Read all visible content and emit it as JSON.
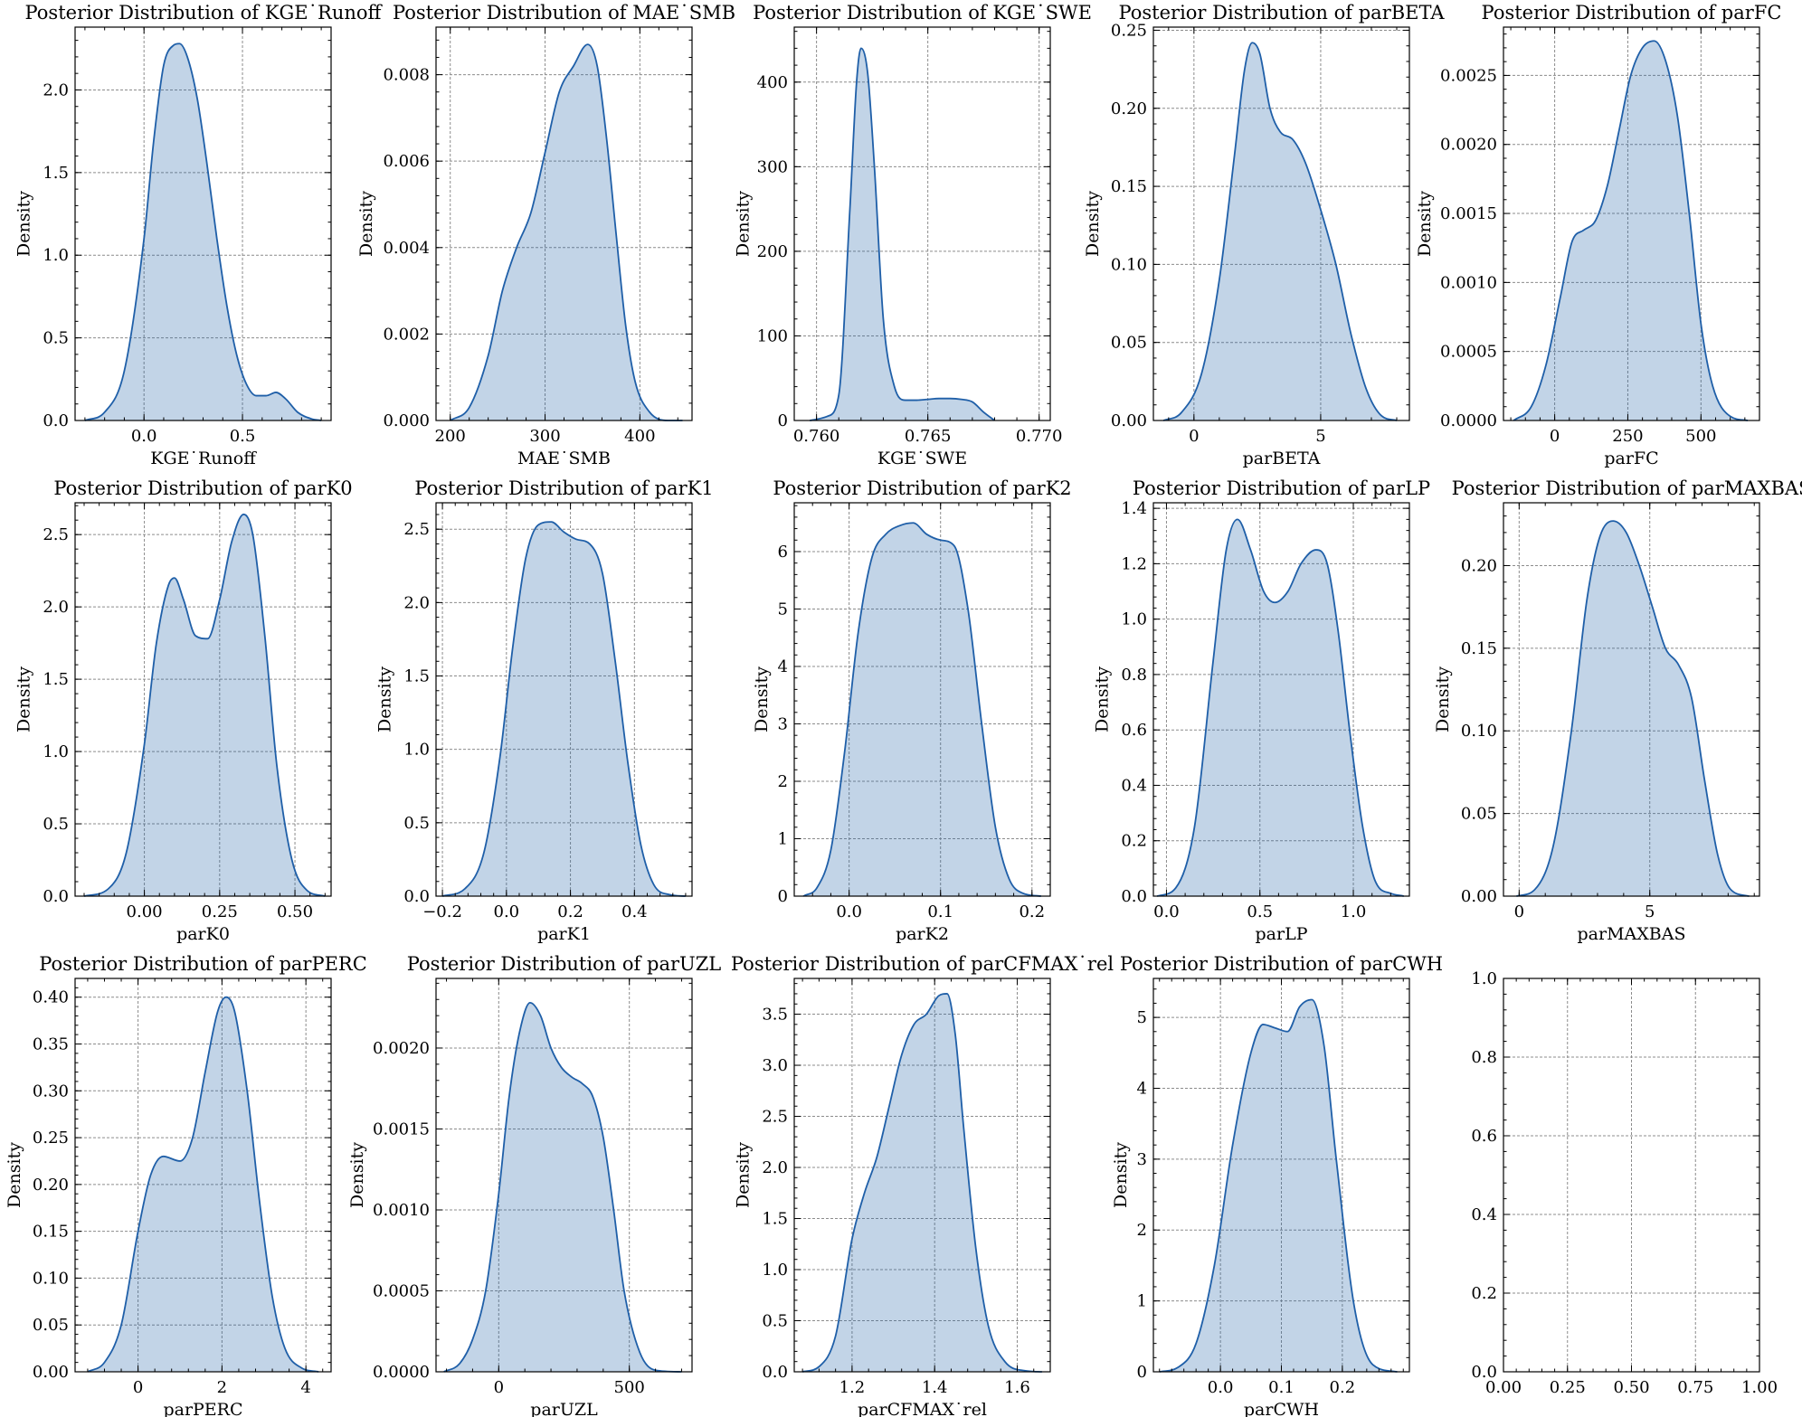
{
  "chart_data": [
    {
      "type": "area",
      "title": "Posterior Distribution of KGE˙Runoff",
      "xlabel": "KGE˙Runoff",
      "ylabel": "Density",
      "xlim": [
        -0.35,
        0.95
      ],
      "ylim": [
        0,
        2.38
      ],
      "xticks": [
        0.0,
        0.5
      ],
      "xtick_labels": [
        "0.0",
        "0.5"
      ],
      "yticks": [
        0.0,
        0.5,
        1.0,
        1.5,
        2.0
      ],
      "ytick_labels": [
        "0.0",
        "0.5",
        "1.0",
        "1.5",
        "2.0"
      ],
      "grid": true,
      "x": [
        -0.3,
        -0.2,
        -0.1,
        0.0,
        0.05,
        0.1,
        0.15,
        0.18,
        0.22,
        0.27,
        0.32,
        0.37,
        0.42,
        0.47,
        0.52,
        0.57,
        0.62,
        0.67,
        0.72,
        0.78,
        0.85,
        0.9
      ],
      "y": [
        0.0,
        0.05,
        0.3,
        1.1,
        1.7,
        2.15,
        2.27,
        2.28,
        2.2,
        1.95,
        1.55,
        1.1,
        0.7,
        0.4,
        0.22,
        0.15,
        0.15,
        0.17,
        0.13,
        0.05,
        0.01,
        0.0
      ]
    },
    {
      "type": "area",
      "title": "Posterior Distribution of MAE˙SMB",
      "xlabel": "MAE˙SMB",
      "ylabel": "Density",
      "xlim": [
        185,
        455
      ],
      "ylim": [
        0,
        0.0091
      ],
      "xticks": [
        200,
        300,
        400
      ],
      "xtick_labels": [
        "200",
        "300",
        "400"
      ],
      "yticks": [
        0.0,
        0.002,
        0.004,
        0.006,
        0.008
      ],
      "ytick_labels": [
        "0.000",
        "0.002",
        "0.004",
        "0.006",
        "0.008"
      ],
      "grid": true,
      "x": [
        200,
        220,
        240,
        255,
        270,
        285,
        300,
        315,
        330,
        345,
        355,
        365,
        375,
        385,
        395,
        410,
        430,
        445
      ],
      "y": [
        0.0,
        0.0003,
        0.0015,
        0.003,
        0.004,
        0.0048,
        0.0062,
        0.0076,
        0.0082,
        0.0087,
        0.0082,
        0.0065,
        0.0043,
        0.0022,
        0.0009,
        0.0002,
        0.0,
        0.0
      ]
    },
    {
      "type": "area",
      "title": "Posterior Distribution of KGE˙SWE",
      "xlabel": "KGE˙SWE",
      "ylabel": "Density",
      "xlim": [
        0.759,
        0.7705
      ],
      "ylim": [
        0,
        465
      ],
      "xticks": [
        0.76,
        0.765,
        0.77
      ],
      "xtick_labels": [
        "0.760",
        "0.765",
        "0.770"
      ],
      "yticks": [
        0,
        100,
        200,
        300,
        400
      ],
      "ytick_labels": [
        "0",
        "100",
        "200",
        "300",
        "400"
      ],
      "grid": true,
      "x": [
        0.7597,
        0.7605,
        0.761,
        0.7615,
        0.7618,
        0.762,
        0.7623,
        0.7626,
        0.763,
        0.7635,
        0.764,
        0.7645,
        0.765,
        0.7655,
        0.766,
        0.7665,
        0.767,
        0.7675,
        0.768
      ],
      "y": [
        0.0,
        5,
        30,
        250,
        400,
        440,
        410,
        300,
        120,
        40,
        24,
        24,
        25,
        26,
        26,
        25,
        22,
        10,
        0
      ]
    },
    {
      "type": "area",
      "title": "Posterior Distribution of parBETA",
      "xlabel": "parBETA",
      "ylabel": "Density",
      "xlim": [
        -1.6,
        8.5
      ],
      "ylim": [
        0,
        0.252
      ],
      "xticks": [
        0,
        5
      ],
      "xtick_labels": [
        "0",
        "5"
      ],
      "yticks": [
        0.0,
        0.05,
        0.1,
        0.15,
        0.2,
        0.25
      ],
      "ytick_labels": [
        "0.00",
        "0.05",
        "0.10",
        "0.15",
        "0.20",
        "0.25"
      ],
      "grid": true,
      "x": [
        -1.2,
        -0.5,
        0.3,
        1.0,
        1.6,
        2.0,
        2.3,
        2.6,
        3.0,
        3.4,
        3.9,
        4.4,
        5.0,
        5.6,
        6.2,
        6.8,
        7.4,
        8.0
      ],
      "y": [
        0.0,
        0.005,
        0.03,
        0.09,
        0.17,
        0.225,
        0.242,
        0.235,
        0.2,
        0.185,
        0.18,
        0.165,
        0.135,
        0.1,
        0.055,
        0.02,
        0.003,
        0.0
      ]
    },
    {
      "type": "area",
      "title": "Posterior Distribution of parFC",
      "xlabel": "parFC",
      "ylabel": "Density",
      "xlim": [
        -175,
        700
      ],
      "ylim": [
        0,
        0.00285
      ],
      "xticks": [
        0,
        250,
        500
      ],
      "xtick_labels": [
        "0",
        "250",
        "500"
      ],
      "yticks": [
        0.0,
        0.0005,
        0.001,
        0.0015,
        0.002,
        0.0025
      ],
      "ytick_labels": [
        "0.0000",
        "0.0005",
        "0.0010",
        "0.0015",
        "0.0020",
        "0.0025"
      ],
      "grid": true,
      "x": [
        -140,
        -80,
        -30,
        20,
        60,
        100,
        140,
        180,
        220,
        260,
        300,
        340,
        380,
        420,
        460,
        500,
        540,
        600,
        660
      ],
      "y": [
        0.0,
        0.0001,
        0.0004,
        0.0009,
        0.0013,
        0.00138,
        0.00145,
        0.0017,
        0.0021,
        0.0025,
        0.0027,
        0.00275,
        0.0026,
        0.0022,
        0.0015,
        0.0007,
        0.00025,
        3e-05,
        0.0
      ]
    },
    {
      "type": "area",
      "title": "Posterior Distribution of parK0",
      "xlabel": "parK0",
      "ylabel": "Density",
      "xlim": [
        -0.23,
        0.62
      ],
      "ylim": [
        0,
        2.72
      ],
      "xticks": [
        0.0,
        0.25,
        0.5
      ],
      "xtick_labels": [
        "0.00",
        "0.25",
        "0.50"
      ],
      "yticks": [
        0.0,
        0.5,
        1.0,
        1.5,
        2.0,
        2.5
      ],
      "ytick_labels": [
        "0.0",
        "0.5",
        "1.0",
        "1.5",
        "2.0",
        "2.5"
      ],
      "grid": true,
      "x": [
        -0.2,
        -0.12,
        -0.06,
        0.0,
        0.04,
        0.08,
        0.1,
        0.13,
        0.17,
        0.21,
        0.25,
        0.29,
        0.33,
        0.36,
        0.4,
        0.44,
        0.49,
        0.54,
        0.6
      ],
      "y": [
        0.0,
        0.05,
        0.3,
        1.05,
        1.75,
        2.15,
        2.2,
        2.05,
        1.8,
        1.78,
        2.05,
        2.45,
        2.64,
        2.5,
        1.8,
        0.9,
        0.25,
        0.04,
        0.0
      ]
    },
    {
      "type": "area",
      "title": "Posterior Distribution of parK1",
      "xlabel": "parK1",
      "ylabel": "Density",
      "xlim": [
        -0.22,
        0.58
      ],
      "ylim": [
        0,
        2.68
      ],
      "xticks": [
        -0.2,
        0.0,
        0.2,
        0.4
      ],
      "xtick_labels": [
        "−0.2",
        "0.0",
        "0.2",
        "0.4"
      ],
      "yticks": [
        0.0,
        0.5,
        1.0,
        1.5,
        2.0,
        2.5
      ],
      "ytick_labels": [
        "0.0",
        "0.5",
        "1.0",
        "1.5",
        "2.0",
        "2.5"
      ],
      "grid": true,
      "x": [
        -0.2,
        -0.13,
        -0.07,
        -0.02,
        0.02,
        0.06,
        0.1,
        0.14,
        0.18,
        0.22,
        0.26,
        0.3,
        0.34,
        0.38,
        0.42,
        0.46,
        0.51,
        0.56
      ],
      "y": [
        0.0,
        0.05,
        0.3,
        0.95,
        1.7,
        2.3,
        2.53,
        2.55,
        2.48,
        2.43,
        2.4,
        2.2,
        1.6,
        0.9,
        0.35,
        0.08,
        0.01,
        0.0
      ]
    },
    {
      "type": "area",
      "title": "Posterior Distribution of parK2",
      "xlabel": "parK2",
      "ylabel": "Density",
      "xlim": [
        -0.06,
        0.22
      ],
      "ylim": [
        0,
        6.85
      ],
      "xticks": [
        0.0,
        0.1,
        0.2
      ],
      "xtick_labels": [
        "0.0",
        "0.1",
        "0.2"
      ],
      "yticks": [
        0,
        1,
        2,
        3,
        4,
        5,
        6
      ],
      "ytick_labels": [
        "0",
        "1",
        "2",
        "3",
        "4",
        "5",
        "6"
      ],
      "grid": true,
      "x": [
        -0.05,
        -0.035,
        -0.02,
        -0.005,
        0.01,
        0.025,
        0.04,
        0.055,
        0.07,
        0.085,
        0.1,
        0.115,
        0.13,
        0.145,
        0.16,
        0.175,
        0.19,
        0.21
      ],
      "y": [
        0.0,
        0.15,
        0.8,
        2.5,
        4.6,
        5.9,
        6.3,
        6.45,
        6.5,
        6.3,
        6.2,
        6.1,
        5.0,
        3.0,
        1.2,
        0.3,
        0.05,
        0.0
      ]
    },
    {
      "type": "area",
      "title": "Posterior Distribution of parLP",
      "xlabel": "parLP",
      "ylabel": "Density",
      "xlim": [
        -0.07,
        1.3
      ],
      "ylim": [
        0,
        1.42
      ],
      "xticks": [
        0.0,
        0.5,
        1.0
      ],
      "xtick_labels": [
        "0.0",
        "0.5",
        "1.0"
      ],
      "yticks": [
        0.0,
        0.2,
        0.4,
        0.6,
        0.8,
        1.0,
        1.2,
        1.4
      ],
      "ytick_labels": [
        "0.0",
        "0.2",
        "0.4",
        "0.6",
        "0.8",
        "1.0",
        "1.2",
        "1.4"
      ],
      "grid": true,
      "x": [
        -0.05,
        0.05,
        0.15,
        0.25,
        0.32,
        0.38,
        0.45,
        0.52,
        0.58,
        0.65,
        0.72,
        0.8,
        0.86,
        0.92,
        0.98,
        1.05,
        1.12,
        1.2,
        1.27
      ],
      "y": [
        0.0,
        0.03,
        0.25,
        0.85,
        1.25,
        1.36,
        1.25,
        1.1,
        1.06,
        1.1,
        1.2,
        1.25,
        1.2,
        0.95,
        0.6,
        0.25,
        0.05,
        0.01,
        0.0
      ]
    },
    {
      "type": "area",
      "title": "Posterior Distribution of parMAXBAS",
      "xlabel": "parMAXBAS",
      "ylabel": "Density",
      "xlim": [
        -0.6,
        9.2
      ],
      "ylim": [
        0,
        0.238
      ],
      "xticks": [
        0,
        5
      ],
      "xtick_labels": [
        "0",
        "5"
      ],
      "yticks": [
        0.0,
        0.05,
        0.1,
        0.15,
        0.2
      ],
      "ytick_labels": [
        "0.00",
        "0.05",
        "0.10",
        "0.15",
        "0.20"
      ],
      "grid": true,
      "x": [
        -0.1,
        0.6,
        1.3,
        2.0,
        2.6,
        3.1,
        3.6,
        4.1,
        4.6,
        5.1,
        5.6,
        6.1,
        6.6,
        7.1,
        7.6,
        8.1,
        8.8
      ],
      "y": [
        0.0,
        0.004,
        0.03,
        0.1,
        0.18,
        0.218,
        0.227,
        0.22,
        0.2,
        0.175,
        0.15,
        0.14,
        0.12,
        0.07,
        0.025,
        0.004,
        0.0
      ]
    },
    {
      "type": "area",
      "title": "Posterior Distribution of parPERC",
      "xlabel": "parPERC",
      "ylabel": "Density",
      "xlim": [
        -1.5,
        4.6
      ],
      "ylim": [
        0,
        0.42
      ],
      "xticks": [
        0,
        2,
        4
      ],
      "xtick_labels": [
        "0",
        "2",
        "4"
      ],
      "yticks": [
        0.0,
        0.05,
        0.1,
        0.15,
        0.2,
        0.25,
        0.3,
        0.35,
        0.4
      ],
      "ytick_labels": [
        "0.00",
        "0.05",
        "0.10",
        "0.15",
        "0.20",
        "0.25",
        "0.30",
        "0.35",
        "0.40"
      ],
      "grid": true,
      "x": [
        -1.2,
        -0.8,
        -0.4,
        0.0,
        0.3,
        0.6,
        1.0,
        1.3,
        1.6,
        1.9,
        2.1,
        2.3,
        2.6,
        2.9,
        3.2,
        3.5,
        3.9,
        4.3
      ],
      "y": [
        0.0,
        0.01,
        0.05,
        0.15,
        0.21,
        0.23,
        0.225,
        0.25,
        0.32,
        0.385,
        0.4,
        0.385,
        0.3,
        0.18,
        0.08,
        0.025,
        0.004,
        0.0
      ]
    },
    {
      "type": "area",
      "title": "Posterior Distribution of parUZL",
      "xlabel": "parUZL",
      "ylabel": "Density",
      "xlim": [
        -240,
        740
      ],
      "ylim": [
        0,
        0.00243
      ],
      "xticks": [
        0,
        500
      ],
      "xtick_labels": [
        "0",
        "500"
      ],
      "yticks": [
        0.0,
        0.0005,
        0.001,
        0.0015,
        0.002
      ],
      "ytick_labels": [
        "0.0000",
        "0.0005",
        "0.0010",
        "0.0015",
        "0.0020"
      ],
      "grid": true,
      "x": [
        -210,
        -150,
        -100,
        -50,
        0,
        40,
        80,
        120,
        160,
        200,
        240,
        280,
        320,
        360,
        400,
        440,
        480,
        540,
        600,
        700
      ],
      "y": [
        0.0,
        5e-05,
        0.0002,
        0.0005,
        0.0011,
        0.0017,
        0.0021,
        0.00228,
        0.0022,
        0.002,
        0.00188,
        0.00182,
        0.00178,
        0.0017,
        0.00145,
        0.001,
        0.0005,
        0.00012,
        1e-05,
        0.0
      ]
    },
    {
      "type": "area",
      "title": "Posterior Distribution of parCFMAX˙rel",
      "xlabel": "parCFMAX˙rel",
      "ylabel": "Density",
      "xlim": [
        1.06,
        1.68
      ],
      "ylim": [
        0,
        3.85
      ],
      "xticks": [
        1.2,
        1.4,
        1.6
      ],
      "xtick_labels": [
        "1.2",
        "1.4",
        "1.6"
      ],
      "yticks": [
        0.0,
        0.5,
        1.0,
        1.5,
        2.0,
        2.5,
        3.0,
        3.5
      ],
      "ytick_labels": [
        "0.0",
        "0.5",
        "1.0",
        "1.5",
        "2.0",
        "2.5",
        "3.0",
        "3.5"
      ],
      "grid": true,
      "x": [
        1.08,
        1.12,
        1.16,
        1.2,
        1.23,
        1.26,
        1.29,
        1.32,
        1.35,
        1.38,
        1.41,
        1.43,
        1.45,
        1.47,
        1.5,
        1.53,
        1.57,
        1.62,
        1.66
      ],
      "y": [
        0.0,
        0.05,
        0.35,
        1.3,
        1.75,
        2.1,
        2.6,
        3.1,
        3.4,
        3.5,
        3.68,
        3.7,
        3.3,
        2.4,
        1.2,
        0.45,
        0.1,
        0.01,
        0.0
      ]
    },
    {
      "type": "area",
      "title": "Posterior Distribution of parCWH",
      "xlabel": "parCWH",
      "ylabel": "Density",
      "xlim": [
        -0.11,
        0.31
      ],
      "ylim": [
        0,
        5.55
      ],
      "xticks": [
        0.0,
        0.1,
        0.2
      ],
      "xtick_labels": [
        "0.0",
        "0.1",
        "0.2"
      ],
      "yticks": [
        0,
        1,
        2,
        3,
        4,
        5
      ],
      "ytick_labels": [
        "0",
        "1",
        "2",
        "3",
        "4",
        "5"
      ],
      "grid": true,
      "x": [
        -0.1,
        -0.07,
        -0.04,
        -0.01,
        0.02,
        0.05,
        0.07,
        0.09,
        0.11,
        0.13,
        0.15,
        0.17,
        0.19,
        0.22,
        0.25,
        0.29
      ],
      "y": [
        0.0,
        0.06,
        0.4,
        1.5,
        3.2,
        4.5,
        4.9,
        4.85,
        4.8,
        5.15,
        5.25,
        4.6,
        3.0,
        0.9,
        0.1,
        0.0
      ]
    },
    {
      "type": "empty",
      "title": "",
      "xlabel": "",
      "ylabel": "",
      "xlim": [
        0,
        1
      ],
      "ylim": [
        0,
        1
      ],
      "xticks": [
        0.0,
        0.25,
        0.5,
        0.75,
        1.0
      ],
      "xtick_labels": [
        "0.00",
        "0.25",
        "0.50",
        "0.75",
        "1.00"
      ],
      "yticks": [
        0.0,
        0.2,
        0.4,
        0.6,
        0.8,
        1.0
      ],
      "ytick_labels": [
        "0.0",
        "0.2",
        "0.4",
        "0.6",
        "0.8",
        "1.0"
      ],
      "grid": true,
      "x": [],
      "y": []
    }
  ]
}
